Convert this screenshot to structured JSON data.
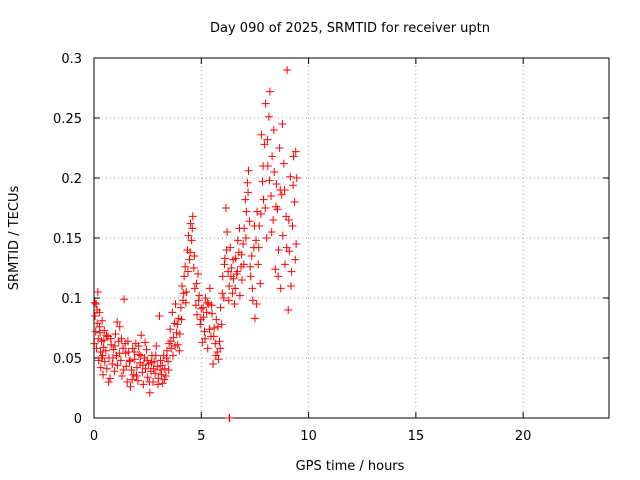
{
  "chart_data": {
    "type": "scatter",
    "title": "Day 090 of 2025, SRMTID for receiver uptn",
    "xlabel": "GPS time / hours",
    "ylabel": "SRMTID / TECUs",
    "xlim": [
      0,
      24
    ],
    "ylim": [
      0,
      0.3
    ],
    "xticks": [
      "0",
      "5",
      "10",
      "15",
      "20"
    ],
    "yticks": [
      "0",
      "0.05",
      "0.1",
      "0.15",
      "0.2",
      "0.25",
      "0.3"
    ],
    "grid": true,
    "marker": "+",
    "color": "#ff0000",
    "series": [
      {
        "points": [
          [
            0.02,
            0.062
          ],
          [
            0.05,
            0.085
          ],
          [
            0.08,
            0.072
          ],
          [
            0.1,
            0.095
          ],
          [
            0.12,
            0.058
          ],
          [
            0.15,
            0.079
          ],
          [
            0.18,
            0.105
          ],
          [
            0.2,
            0.066
          ],
          [
            0.22,
            0.048
          ],
          [
            0.25,
            0.088
          ],
          [
            0.28,
            0.071
          ],
          [
            0.3,
            0.055
          ],
          [
            0.32,
            0.042
          ],
          [
            0.35,
            0.064
          ],
          [
            0.38,
            0.081
          ],
          [
            0.4,
            0.052
          ],
          [
            0.42,
            0.036
          ],
          [
            0.45,
            0.059
          ],
          [
            0.48,
            0.073
          ],
          [
            0.5,
            0.047
          ],
          [
            0.55,
            0.056
          ],
          [
            0.6,
            0.041
          ],
          [
            0.65,
            0.068
          ],
          [
            0.7,
            0.05
          ],
          [
            0.75,
            0.033
          ],
          [
            0.8,
            0.061
          ],
          [
            0.85,
            0.045
          ],
          [
            0.9,
            0.057
          ],
          [
            0.95,
            0.039
          ],
          [
            1.0,
            0.07
          ],
          [
            1.05,
            0.052
          ],
          [
            1.1,
            0.044
          ],
          [
            1.15,
            0.064
          ],
          [
            1.2,
            0.076
          ],
          [
            1.25,
            0.048
          ],
          [
            1.3,
            0.035
          ],
          [
            1.35,
            0.058
          ],
          [
            1.4,
            0.099
          ],
          [
            1.45,
            0.062
          ],
          [
            1.5,
            0.043
          ],
          [
            1.55,
            0.03
          ],
          [
            1.6,
            0.055
          ],
          [
            1.65,
            0.047
          ],
          [
            1.7,
            0.026
          ],
          [
            1.75,
            0.04
          ],
          [
            1.8,
            0.058
          ],
          [
            1.85,
            0.036
          ],
          [
            1.9,
            0.049
          ],
          [
            1.95,
            0.062
          ],
          [
            2.0,
            0.042
          ],
          [
            2.05,
            0.031
          ],
          [
            2.1,
            0.053
          ],
          [
            2.15,
            0.046
          ],
          [
            2.2,
            0.069
          ],
          [
            2.25,
            0.038
          ],
          [
            2.3,
            0.028
          ],
          [
            2.35,
            0.05
          ],
          [
            2.4,
            0.041
          ],
          [
            2.45,
            0.057
          ],
          [
            2.5,
            0.034
          ],
          [
            2.55,
            0.045
          ],
          [
            2.6,
            0.021
          ],
          [
            2.65,
            0.039
          ],
          [
            2.7,
            0.052
          ],
          [
            2.75,
            0.03
          ],
          [
            2.8,
            0.047
          ],
          [
            2.85,
            0.037
          ],
          [
            2.9,
            0.06
          ],
          [
            2.95,
            0.043
          ],
          [
            3.0,
            0.033
          ],
          [
            3.05,
            0.085
          ],
          [
            3.1,
            0.048
          ],
          [
            3.15,
            0.036
          ],
          [
            3.2,
            0.029
          ],
          [
            3.25,
            0.052
          ],
          [
            3.3,
            0.041
          ],
          [
            3.35,
            0.035
          ],
          [
            3.4,
            0.056
          ],
          [
            3.45,
            0.047
          ],
          [
            3.5,
            0.062
          ],
          [
            3.55,
            0.074
          ],
          [
            3.6,
            0.058
          ],
          [
            3.65,
            0.088
          ],
          [
            3.7,
            0.067
          ],
          [
            3.75,
            0.079
          ],
          [
            3.8,
            0.095
          ],
          [
            3.85,
            0.071
          ],
          [
            3.9,
            0.061
          ],
          [
            3.95,
            0.083
          ],
          [
            4.0,
            0.07
          ],
          [
            4.05,
            0.092
          ],
          [
            4.1,
            0.11
          ],
          [
            4.15,
            0.098
          ],
          [
            4.2,
            0.118
          ],
          [
            4.25,
            0.126
          ],
          [
            4.3,
            0.105
          ],
          [
            4.35,
            0.14
          ],
          [
            4.4,
            0.152
          ],
          [
            4.45,
            0.132
          ],
          [
            4.5,
            0.162
          ],
          [
            4.55,
            0.148
          ],
          [
            4.6,
            0.168
          ],
          [
            4.65,
            0.125
          ],
          [
            4.7,
            0.108
          ],
          [
            4.75,
            0.094
          ],
          [
            4.8,
            0.086
          ],
          [
            4.85,
            0.12
          ],
          [
            4.9,
            0.102
          ],
          [
            4.95,
            0.078
          ],
          [
            5.0,
            0.091
          ],
          [
            5.05,
            0.063
          ],
          [
            5.1,
            0.084
          ],
          [
            5.15,
            0.072
          ],
          [
            5.2,
            0.1
          ],
          [
            5.25,
            0.088
          ],
          [
            5.3,
            0.058
          ],
          [
            5.35,
            0.095
          ],
          [
            5.4,
            0.108
          ],
          [
            5.45,
            0.068
          ],
          [
            5.5,
            0.087
          ],
          [
            5.55,
            0.045
          ],
          [
            5.6,
            0.075
          ],
          [
            5.65,
            0.062
          ],
          [
            5.7,
            0.082
          ],
          [
            5.75,
            0.055
          ],
          [
            5.8,
            0.049
          ],
          [
            5.85,
            0.064
          ],
          [
            5.9,
            0.092
          ],
          [
            5.95,
            0.078
          ],
          [
            6.0,
            0.118
          ],
          [
            6.05,
            0.1
          ],
          [
            6.1,
            0.133
          ],
          [
            6.15,
            0.175
          ],
          [
            6.2,
            0.155
          ],
          [
            6.25,
            0.122
          ],
          [
            6.3,
            0.11
          ],
          [
            6.35,
            0.142
          ],
          [
            6.4,
            0.125
          ],
          [
            6.45,
            0.104
          ],
          [
            6.5,
            0.116
          ],
          [
            6.55,
            0.095
          ],
          [
            6.6,
            0.133
          ],
          [
            6.65,
            0.12
          ],
          [
            6.7,
            0.148
          ],
          [
            6.75,
            0.138
          ],
          [
            6.8,
            0.102
          ],
          [
            6.85,
            0.126
          ],
          [
            6.9,
            0.115
          ],
          [
            6.95,
            0.145
          ],
          [
            7.0,
            0.158
          ],
          [
            7.05,
            0.182
          ],
          [
            7.1,
            0.172
          ],
          [
            7.15,
            0.196
          ],
          [
            7.2,
            0.206
          ],
          [
            7.25,
            0.164
          ],
          [
            7.3,
            0.118
          ],
          [
            7.35,
            0.135
          ],
          [
            7.4,
            0.098
          ],
          [
            7.45,
            0.142
          ],
          [
            7.5,
            0.083
          ],
          [
            7.55,
            0.148
          ],
          [
            7.6,
            0.172
          ],
          [
            7.65,
            0.128
          ],
          [
            7.7,
            0.16
          ],
          [
            7.75,
            0.112
          ],
          [
            7.8,
            0.236
          ],
          [
            7.85,
            0.197
          ],
          [
            7.9,
            0.182
          ],
          [
            7.95,
            0.228
          ],
          [
            8.0,
            0.262
          ],
          [
            8.05,
            0.15
          ],
          [
            8.1,
            0.21
          ],
          [
            8.15,
            0.251
          ],
          [
            8.2,
            0.272
          ],
          [
            8.25,
            0.185
          ],
          [
            8.3,
            0.218
          ],
          [
            8.35,
            0.165
          ],
          [
            8.4,
            0.205
          ],
          [
            8.45,
            0.124
          ],
          [
            8.5,
            0.195
          ],
          [
            8.55,
            0.174
          ],
          [
            8.6,
            0.14
          ],
          [
            8.65,
            0.225
          ],
          [
            8.7,
            0.108
          ],
          [
            8.75,
            0.186
          ],
          [
            8.8,
            0.152
          ],
          [
            8.85,
            0.212
          ],
          [
            8.9,
            0.128
          ],
          [
            8.95,
            0.168
          ],
          [
            9.0,
            0.29
          ],
          [
            9.05,
            0.09
          ],
          [
            9.1,
            0.139
          ],
          [
            9.15,
            0.201
          ],
          [
            9.2,
            0.122
          ],
          [
            9.25,
            0.16
          ],
          [
            9.3,
            0.218
          ],
          [
            9.35,
            0.18
          ],
          [
            9.4,
            0.222
          ],
          [
            9.42,
            0.145
          ],
          [
            9.45,
            0.2
          ],
          [
            0.04,
            0.096
          ],
          [
            0.14,
            0.09
          ],
          [
            0.26,
            0.076
          ],
          [
            0.36,
            0.05
          ],
          [
            0.46,
            0.065
          ],
          [
            0.58,
            0.069
          ],
          [
            0.68,
            0.03
          ],
          [
            0.78,
            0.066
          ],
          [
            0.88,
            0.05
          ],
          [
            0.98,
            0.06
          ],
          [
            1.08,
            0.08
          ],
          [
            1.18,
            0.054
          ],
          [
            1.28,
            0.066
          ],
          [
            1.38,
            0.04
          ],
          [
            1.48,
            0.054
          ],
          [
            1.58,
            0.064
          ],
          [
            1.68,
            0.048
          ],
          [
            1.78,
            0.032
          ],
          [
            1.88,
            0.055
          ],
          [
            1.98,
            0.035
          ],
          [
            2.08,
            0.06
          ],
          [
            2.18,
            0.052
          ],
          [
            2.28,
            0.044
          ],
          [
            2.38,
            0.063
          ],
          [
            2.48,
            0.048
          ],
          [
            2.58,
            0.03
          ],
          [
            2.68,
            0.046
          ],
          [
            2.78,
            0.041
          ],
          [
            2.88,
            0.052
          ],
          [
            2.98,
            0.028
          ],
          [
            3.08,
            0.04
          ],
          [
            3.18,
            0.044
          ],
          [
            3.28,
            0.032
          ],
          [
            3.38,
            0.05
          ],
          [
            3.48,
            0.04
          ],
          [
            3.58,
            0.064
          ],
          [
            3.68,
            0.052
          ],
          [
            3.78,
            0.06
          ],
          [
            3.88,
            0.078
          ],
          [
            3.98,
            0.056
          ],
          [
            4.08,
            0.082
          ],
          [
            4.18,
            0.104
          ],
          [
            4.28,
            0.096
          ],
          [
            4.38,
            0.122
          ],
          [
            4.48,
            0.138
          ],
          [
            4.58,
            0.158
          ],
          [
            4.68,
            0.135
          ],
          [
            4.78,
            0.112
          ],
          [
            4.88,
            0.098
          ],
          [
            4.98,
            0.082
          ],
          [
            5.08,
            0.092
          ],
          [
            5.18,
            0.066
          ],
          [
            5.28,
            0.096
          ],
          [
            5.38,
            0.074
          ],
          [
            5.48,
            0.094
          ],
          [
            5.58,
            0.068
          ],
          [
            5.68,
            0.052
          ],
          [
            5.78,
            0.076
          ],
          [
            5.88,
            0.058
          ],
          [
            5.98,
            0.104
          ],
          [
            6.08,
            0.128
          ],
          [
            6.18,
            0.14
          ],
          [
            6.28,
            0.098
          ],
          [
            6.38,
            0.118
          ],
          [
            6.48,
            0.132
          ],
          [
            6.58,
            0.108
          ],
          [
            6.68,
            0.122
          ],
          [
            6.78,
            0.158
          ],
          [
            6.88,
            0.136
          ],
          [
            6.98,
            0.128
          ],
          [
            7.08,
            0.15
          ],
          [
            7.18,
            0.188
          ],
          [
            7.28,
            0.126
          ],
          [
            7.38,
            0.108
          ],
          [
            7.48,
            0.16
          ],
          [
            7.58,
            0.095
          ],
          [
            7.68,
            0.142
          ],
          [
            7.78,
            0.17
          ],
          [
            7.88,
            0.21
          ],
          [
            7.98,
            0.175
          ],
          [
            8.08,
            0.232
          ],
          [
            8.18,
            0.198
          ],
          [
            8.28,
            0.155
          ],
          [
            8.38,
            0.24
          ],
          [
            8.48,
            0.176
          ],
          [
            8.58,
            0.118
          ],
          [
            8.68,
            0.19
          ],
          [
            8.78,
            0.245
          ],
          [
            8.88,
            0.19
          ],
          [
            8.98,
            0.142
          ],
          [
            9.08,
            0.165
          ],
          [
            9.18,
            0.11
          ],
          [
            9.28,
            0.194
          ],
          [
            9.38,
            0.132
          ],
          [
            6.3,
            0.0
          ],
          [
            6.32,
            0.0
          ]
        ]
      }
    ]
  }
}
